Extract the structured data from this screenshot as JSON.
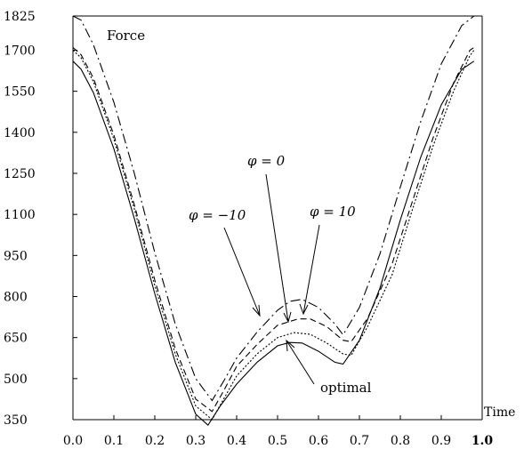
{
  "chart_data": {
    "type": "line",
    "xlabel": "Time",
    "ylabel": "Force",
    "xlim": [
      0.0,
      1.0
    ],
    "ylim": [
      350,
      1825
    ],
    "xticks": [
      0.0,
      0.1,
      0.2,
      0.3,
      0.4,
      0.5,
      0.6,
      0.7,
      0.8,
      0.9,
      1.0
    ],
    "xtick_labels": [
      "0.0",
      "0.1",
      "0.2",
      "0.3",
      "0.4",
      "0.5",
      "0.6",
      "0.7",
      "0.8",
      "0.9",
      "1.0"
    ],
    "yticks": [
      350,
      500,
      650,
      800,
      950,
      1100,
      1250,
      1400,
      1550,
      1700,
      1825
    ],
    "ytick_labels": [
      "350",
      "500",
      "650",
      "800",
      "950",
      "1100",
      "1250",
      "1400",
      "1550",
      "1700",
      "1825"
    ],
    "series": [
      {
        "name": "optimal",
        "dash": "solid",
        "points": [
          [
            0.0,
            1660
          ],
          [
            0.02,
            1630
          ],
          [
            0.05,
            1545
          ],
          [
            0.1,
            1340
          ],
          [
            0.15,
            1085
          ],
          [
            0.2,
            810
          ],
          [
            0.25,
            560
          ],
          [
            0.3,
            370
          ],
          [
            0.33,
            330
          ],
          [
            0.36,
            400
          ],
          [
            0.4,
            480
          ],
          [
            0.45,
            560
          ],
          [
            0.5,
            620
          ],
          [
            0.53,
            632
          ],
          [
            0.56,
            630
          ],
          [
            0.6,
            600
          ],
          [
            0.64,
            560
          ],
          [
            0.66,
            553
          ],
          [
            0.7,
            640
          ],
          [
            0.75,
            830
          ],
          [
            0.8,
            1080
          ],
          [
            0.85,
            1310
          ],
          [
            0.9,
            1500
          ],
          [
            0.95,
            1630
          ],
          [
            0.98,
            1660
          ]
        ]
      },
      {
        "name": "φ = 0",
        "dash": "dotted",
        "points": [
          [
            0.0,
            1700
          ],
          [
            0.02,
            1672
          ],
          [
            0.05,
            1585
          ],
          [
            0.1,
            1375
          ],
          [
            0.15,
            1120
          ],
          [
            0.2,
            840
          ],
          [
            0.25,
            590
          ],
          [
            0.3,
            400
          ],
          [
            0.34,
            350
          ],
          [
            0.37,
            430
          ],
          [
            0.4,
            510
          ],
          [
            0.45,
            590
          ],
          [
            0.5,
            650
          ],
          [
            0.54,
            668
          ],
          [
            0.58,
            662
          ],
          [
            0.62,
            630
          ],
          [
            0.66,
            590
          ],
          [
            0.68,
            585
          ],
          [
            0.72,
            690
          ],
          [
            0.78,
            880
          ],
          [
            0.83,
            1120
          ],
          [
            0.88,
            1350
          ],
          [
            0.93,
            1550
          ],
          [
            0.97,
            1680
          ],
          [
            0.98,
            1700
          ]
        ]
      },
      {
        "name": "φ = 10",
        "dash": "dashed",
        "points": [
          [
            0.0,
            1710
          ],
          [
            0.02,
            1683
          ],
          [
            0.05,
            1598
          ],
          [
            0.1,
            1390
          ],
          [
            0.15,
            1135
          ],
          [
            0.2,
            860
          ],
          [
            0.25,
            610
          ],
          [
            0.3,
            425
          ],
          [
            0.34,
            380
          ],
          [
            0.37,
            460
          ],
          [
            0.4,
            545
          ],
          [
            0.45,
            625
          ],
          [
            0.5,
            695
          ],
          [
            0.55,
            718
          ],
          [
            0.58,
            718
          ],
          [
            0.62,
            690
          ],
          [
            0.66,
            640
          ],
          [
            0.68,
            635
          ],
          [
            0.72,
            720
          ],
          [
            0.78,
            920
          ],
          [
            0.83,
            1150
          ],
          [
            0.88,
            1380
          ],
          [
            0.93,
            1580
          ],
          [
            0.97,
            1700
          ],
          [
            0.98,
            1710
          ]
        ]
      },
      {
        "name": "φ = −10",
        "dash": "dashdot",
        "points": [
          [
            0.0,
            1825
          ],
          [
            0.02,
            1810
          ],
          [
            0.05,
            1720
          ],
          [
            0.1,
            1510
          ],
          [
            0.15,
            1250
          ],
          [
            0.2,
            960
          ],
          [
            0.25,
            700
          ],
          [
            0.3,
            500
          ],
          [
            0.34,
            420
          ],
          [
            0.37,
            495
          ],
          [
            0.4,
            575
          ],
          [
            0.45,
            670
          ],
          [
            0.5,
            750
          ],
          [
            0.53,
            782
          ],
          [
            0.56,
            790
          ],
          [
            0.6,
            760
          ],
          [
            0.64,
            700
          ],
          [
            0.66,
            660
          ],
          [
            0.7,
            760
          ],
          [
            0.75,
            955
          ],
          [
            0.8,
            1200
          ],
          [
            0.85,
            1440
          ],
          [
            0.9,
            1650
          ],
          [
            0.95,
            1790
          ],
          [
            0.98,
            1825
          ]
        ]
      }
    ],
    "annotations": [
      "Force",
      "φ = 0",
      "φ = −10",
      "φ = 10",
      "optimal"
    ]
  }
}
